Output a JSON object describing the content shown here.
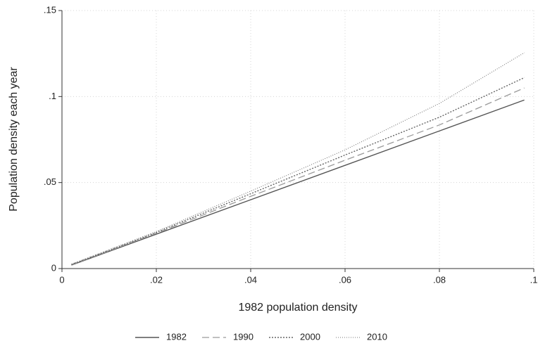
{
  "chart_data": {
    "type": "line",
    "xlabel": "1982 population density",
    "ylabel": "Population density each year",
    "x": [
      0.002,
      0.02,
      0.04,
      0.06,
      0.08,
      0.098
    ],
    "series": [
      {
        "name": "1982",
        "color": "#555555",
        "dash": "solid",
        "values": [
          0.002,
          0.02,
          0.04,
          0.06,
          0.08,
          0.098
        ]
      },
      {
        "name": "1990",
        "color": "#9a9a9a",
        "dash": "long-dash",
        "values": [
          0.0022,
          0.0205,
          0.042,
          0.063,
          0.0835,
          0.105
        ]
      },
      {
        "name": "2000",
        "color": "#666666",
        "dash": "short-dot",
        "values": [
          0.0024,
          0.021,
          0.0435,
          0.066,
          0.088,
          0.111
        ]
      },
      {
        "name": "2010",
        "color": "#777777",
        "dash": "fine-dot",
        "values": [
          0.0025,
          0.0215,
          0.045,
          0.069,
          0.096,
          0.1255
        ]
      }
    ],
    "xlim": [
      0,
      0.1
    ],
    "xticks": [
      0,
      {
        "value": 0.02,
        "label": ".02"
      },
      {
        "value": 0.04,
        "label": ".04"
      },
      {
        "value": 0.06,
        "label": ".06"
      },
      {
        "value": 0.08,
        "label": ".08"
      },
      {
        "value": 0.1,
        "label": ".1"
      }
    ],
    "ylim": [
      0,
      0.15
    ],
    "yticks": [
      0,
      {
        "value": 0.05,
        "label": ".05"
      },
      {
        "value": 0.1,
        "label": ".1"
      },
      {
        "value": 0.15,
        "label": ".15"
      }
    ],
    "grid": true,
    "legend": "bottom"
  }
}
